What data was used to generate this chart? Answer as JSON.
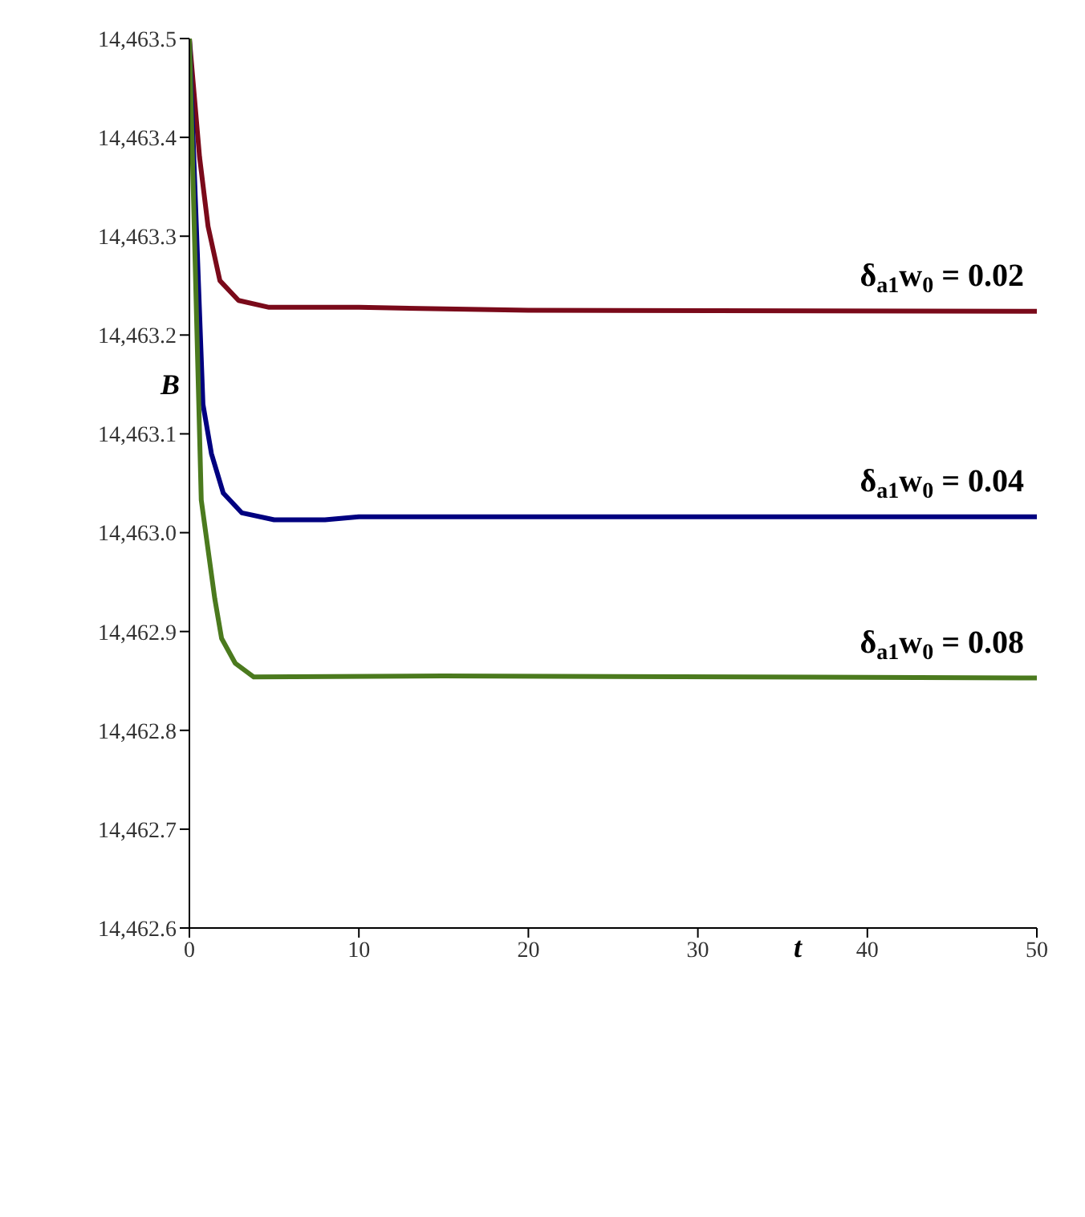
{
  "chart_data": {
    "type": "line",
    "xlabel": "t",
    "ylabel": "B",
    "legend": false,
    "grid": false,
    "marker": "none",
    "line_style": "solid",
    "xlim": [
      0,
      50
    ],
    "xticks": [
      0,
      10,
      20,
      30,
      40,
      50
    ],
    "ylim": [
      14462.6,
      14463.5
    ],
    "yticks": [
      {
        "value": 14462.6,
        "label": "14,462.6"
      },
      {
        "value": 14462.7,
        "label": "14,462.7"
      },
      {
        "value": 14462.8,
        "label": "14,462.8"
      },
      {
        "value": 14462.9,
        "label": "14,462.9"
      },
      {
        "value": 14463.0,
        "label": "14,463.0"
      },
      {
        "value": 14463.1,
        "label": "14,463.1"
      },
      {
        "value": 14463.2,
        "label": "14,463.2"
      },
      {
        "value": 14463.3,
        "label": "14,463.3"
      },
      {
        "value": 14463.4,
        "label": "14,463.4"
      },
      {
        "value": 14463.5,
        "label": "14,463.5"
      }
    ],
    "series": [
      {
        "name": "δ$_{a1}$w$_{0}$ = 0.02",
        "color": "#7a0a1a",
        "x": [
          0,
          0.6,
          1.1,
          1.8,
          2.9,
          4.7,
          10,
          20,
          50
        ],
        "values": [
          14463.5,
          14463.38,
          14463.31,
          14463.255,
          14463.235,
          14463.228,
          14463.228,
          14463.225,
          14463.224
        ]
      },
      {
        "name": "δ$_{a1}$w$_{0}$ = 0.04",
        "color": "#000080",
        "x": [
          0,
          0.8,
          1.3,
          2.0,
          3.1,
          5,
          8,
          10,
          50
        ],
        "values": [
          14463.5,
          14463.13,
          14463.08,
          14463.04,
          14463.02,
          14463.013,
          14463.013,
          14463.016,
          14463.016
        ]
      },
      {
        "name": "δ$_{a1}$w$_{0}$ = 0.08",
        "color": "#4b7a1e",
        "x": [
          0,
          0.7,
          1.5,
          1.9,
          2.7,
          3.8,
          15,
          50
        ],
        "values": [
          14463.5,
          14463.033,
          14462.933,
          14462.893,
          14462.868,
          14462.854,
          14462.855,
          14462.853
        ]
      }
    ]
  }
}
